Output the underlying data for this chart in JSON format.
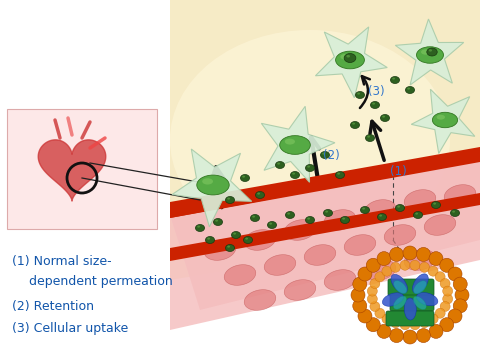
{
  "figsize": [
    4.8,
    3.56
  ],
  "dpi": 100,
  "background": "#ffffff",
  "legend_lines": [
    "(1) Normal size-",
    "dependent permeation",
    "(2) Retention",
    "(3) Cellular uptake"
  ],
  "label_1": "(1)",
  "label_2": "(2)",
  "label_3": "(3)",
  "vessel_color": "#f0b8b8",
  "vessel_wall_color": "#cc2200",
  "tissue_color_center": "#f5e0b0",
  "tissue_color_edge": "#f8f0d8",
  "nanoparticle_color": "#2d6020",
  "nanoparticle_edge": "#1a3a10",
  "cell_color": "#d8eed8",
  "cell_edge": "#8ab888",
  "arrow_color": "#111111",
  "text_color_label": "#3377cc",
  "text_color_legend": "#1155aa"
}
